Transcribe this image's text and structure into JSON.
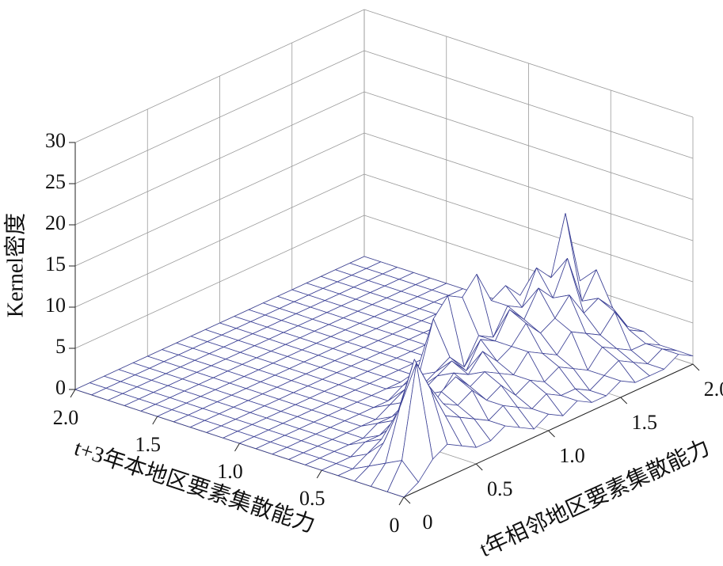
{
  "chart_data": {
    "type": "surface3d",
    "xlabel": "t年相邻地区要素集散能力",
    "ylabel": "t+3年本地区要素集散能力",
    "zlabel": "Kernel密度",
    "x": [
      0,
      0.1,
      0.2,
      0.3,
      0.4,
      0.5,
      0.6,
      0.7,
      0.8,
      0.9,
      1.0,
      1.1,
      1.2,
      1.3,
      1.4,
      1.5,
      1.6,
      1.7,
      1.8,
      1.9,
      2.0
    ],
    "y": [
      0,
      0.1,
      0.2,
      0.3,
      0.4,
      0.5,
      0.6,
      0.7,
      0.8,
      0.9,
      1.0,
      1.1,
      1.2,
      1.3,
      1.4,
      1.5,
      1.6,
      1.7,
      1.8,
      1.9,
      2.0
    ],
    "z": [
      [
        0,
        1,
        3,
        4,
        3,
        2,
        2,
        3,
        2,
        1,
        2,
        1,
        2,
        1,
        1,
        2,
        1,
        1,
        1,
        2,
        1
      ],
      [
        0,
        3,
        14,
        10,
        6,
        5,
        4,
        3,
        4,
        3,
        2,
        3,
        2,
        2,
        1,
        2,
        3,
        2,
        1,
        2,
        1
      ],
      [
        0,
        2,
        8,
        13,
        9,
        6,
        5,
        6,
        4,
        5,
        3,
        4,
        3,
        4,
        3,
        2,
        4,
        3,
        2,
        2,
        1
      ],
      [
        0,
        1,
        3,
        6,
        5,
        4,
        6,
        7,
        5,
        6,
        5,
        4,
        6,
        5,
        4,
        6,
        5,
        4,
        6,
        3,
        2
      ],
      [
        0,
        0,
        1,
        2,
        3,
        4,
        5,
        4,
        6,
        5,
        7,
        5,
        6,
        8,
        6,
        7,
        9,
        6,
        7,
        5,
        2
      ],
      [
        0,
        0,
        0,
        1,
        1,
        2,
        3,
        4,
        5,
        6,
        4,
        7,
        6,
        9,
        7,
        10,
        8,
        12,
        6,
        9,
        3
      ],
      [
        0,
        0,
        0,
        0,
        0,
        1,
        1,
        2,
        3,
        4,
        5,
        3,
        6,
        5,
        8,
        7,
        11,
        9,
        16,
        7,
        4
      ],
      [
        0,
        0,
        0,
        0,
        0,
        0,
        0,
        1,
        2,
        3,
        9,
        11,
        10,
        12,
        8,
        9,
        7,
        8,
        6,
        5,
        2
      ],
      [
        0,
        0,
        0,
        0,
        0,
        0,
        0,
        0,
        0,
        1,
        2,
        3,
        4,
        3,
        2,
        1,
        1,
        1,
        1,
        0,
        0
      ],
      [
        0,
        0,
        0,
        0,
        0,
        0,
        0,
        0,
        0,
        0,
        0,
        0,
        0,
        0,
        0,
        0,
        0,
        0,
        0,
        0,
        0
      ],
      [
        0,
        0,
        0,
        0,
        0,
        0,
        0,
        0,
        0,
        0,
        0,
        0,
        0,
        0,
        0,
        0,
        0,
        0,
        0,
        0,
        0
      ],
      [
        0,
        0,
        0,
        0,
        0,
        0,
        0,
        0,
        0,
        0,
        0,
        0,
        0,
        0,
        0,
        0,
        0,
        0,
        0,
        0,
        0
      ],
      [
        0,
        0,
        0,
        0,
        0,
        0,
        0,
        0,
        0,
        0,
        0,
        0,
        0,
        0,
        0,
        0,
        0,
        0,
        0,
        0,
        0
      ],
      [
        0,
        0,
        0,
        0,
        0,
        0,
        0,
        0,
        0,
        0,
        0,
        0,
        0,
        0,
        0,
        0,
        0,
        0,
        0,
        0,
        0
      ],
      [
        0,
        0,
        0,
        0,
        0,
        0,
        0,
        0,
        0,
        0,
        0,
        0,
        0,
        0,
        0,
        0,
        0,
        0,
        0,
        0,
        0
      ],
      [
        0,
        0,
        0,
        0,
        0,
        0,
        0,
        0,
        0,
        0,
        0,
        0,
        0,
        0,
        0,
        0,
        0,
        0,
        0,
        0,
        0
      ],
      [
        0,
        0,
        0,
        0,
        0,
        0,
        0,
        0,
        0,
        0,
        0,
        0,
        0,
        0,
        0,
        0,
        0,
        0,
        0,
        0,
        0
      ],
      [
        0,
        0,
        0,
        0,
        0,
        0,
        0,
        0,
        0,
        0,
        0,
        0,
        0,
        0,
        0,
        0,
        0,
        0,
        0,
        0,
        0
      ],
      [
        0,
        0,
        0,
        0,
        0,
        0,
        0,
        0,
        0,
        0,
        0,
        0,
        0,
        0,
        0,
        0,
        0,
        0,
        0,
        0,
        0
      ],
      [
        0,
        0,
        0,
        0,
        0,
        0,
        0,
        0,
        0,
        0,
        0,
        0,
        0,
        0,
        0,
        0,
        0,
        0,
        0,
        0,
        0
      ],
      [
        0,
        0,
        0,
        0,
        0,
        0,
        0,
        0,
        0,
        0,
        0,
        0,
        0,
        0,
        0,
        0,
        0,
        0,
        0,
        0,
        0
      ]
    ],
    "xlim": [
      0,
      2
    ],
    "ylim": [
      0,
      2
    ],
    "zlim": [
      0,
      30
    ],
    "xticks": [
      0,
      0.5,
      {
        "value": 1,
        "label": "1.0"
      },
      1.5,
      {
        "value": 2,
        "label": "2.0"
      }
    ],
    "yticks": [
      0,
      0.5,
      {
        "value": 1,
        "label": "1.0"
      },
      1.5,
      {
        "value": 2,
        "label": "2.0"
      }
    ],
    "zticks": [
      0,
      5,
      10,
      15,
      20,
      25,
      30
    ],
    "color": "#3d4296",
    "grid": true
  }
}
